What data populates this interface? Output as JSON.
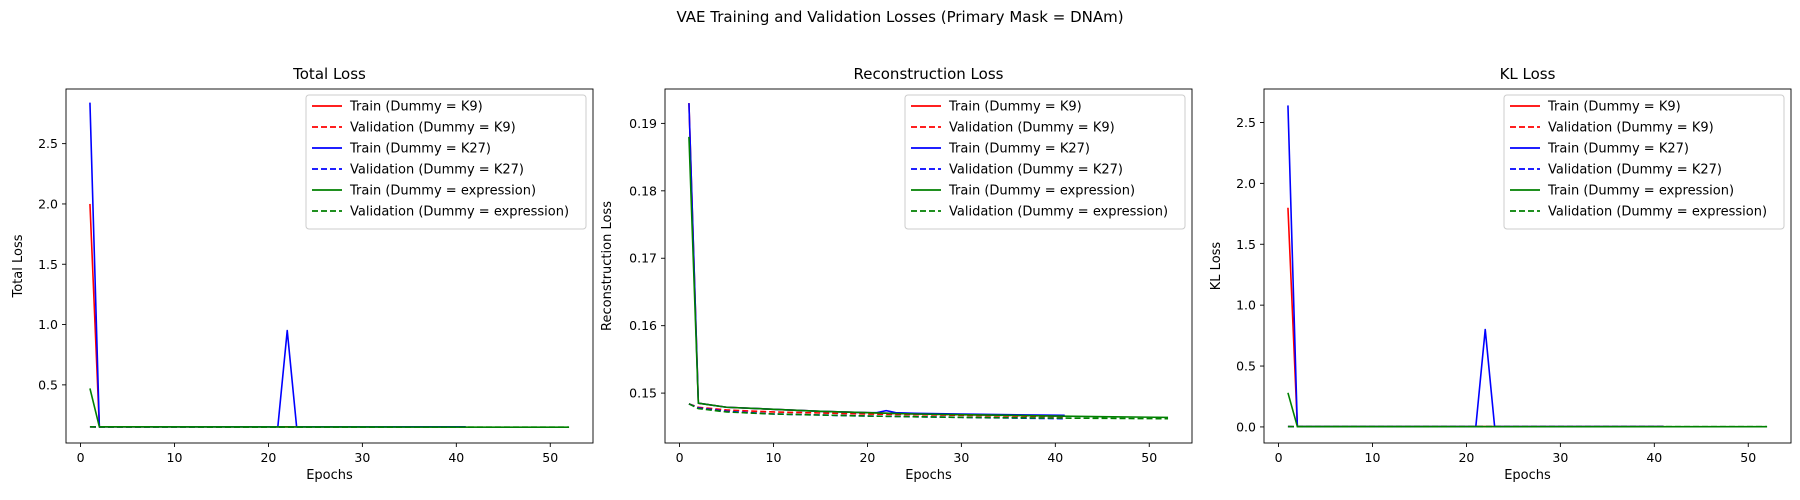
{
  "figure": {
    "suptitle": "VAE Training and Validation Losses (Primary Mask = DNAm)"
  },
  "colors": {
    "K9": "#ff0000",
    "K27": "#0000ff",
    "expression": "#008000"
  },
  "legend_placement": "upper right",
  "chart_data": [
    {
      "type": "line",
      "title": "Total Loss",
      "xlabel": "Epochs",
      "ylabel": "Total Loss",
      "xlim": [
        -1.55,
        54.55
      ],
      "ylim": [
        0.018,
        2.953
      ],
      "xticks": [
        0,
        10,
        20,
        30,
        40,
        50
      ],
      "yticks": [
        0.5,
        1.0,
        1.5,
        2.0,
        2.5
      ],
      "grid": false,
      "legend": "top-right",
      "series": [
        {
          "name": "Train (Dummy = K9)",
          "color": "#ff0000",
          "dash": "solid",
          "x": [
            1,
            2,
            41
          ],
          "y": [
            2.0,
            0.152,
            0.152
          ]
        },
        {
          "name": "Validation (Dummy = K9)",
          "color": "#ff0000",
          "dash": "dashed",
          "x": [
            1,
            2,
            41
          ],
          "y": [
            0.152,
            0.151,
            0.151
          ]
        },
        {
          "name": "Train (Dummy = K27)",
          "color": "#0000ff",
          "dash": "solid",
          "x": [
            1,
            2,
            21,
            22,
            23,
            41
          ],
          "y": [
            2.84,
            0.152,
            0.152,
            0.95,
            0.152,
            0.152
          ]
        },
        {
          "name": "Validation (Dummy = K27)",
          "color": "#0000ff",
          "dash": "dashed",
          "x": [
            1,
            2,
            41
          ],
          "y": [
            0.152,
            0.151,
            0.151
          ]
        },
        {
          "name": "Train (Dummy = expression)",
          "color": "#008000",
          "dash": "solid",
          "x": [
            1,
            2,
            52
          ],
          "y": [
            0.47,
            0.152,
            0.149
          ]
        },
        {
          "name": "Validation (Dummy = expression)",
          "color": "#008000",
          "dash": "dashed",
          "x": [
            1,
            2,
            52
          ],
          "y": [
            0.152,
            0.151,
            0.149
          ]
        }
      ]
    },
    {
      "type": "line",
      "title": "Reconstruction Loss",
      "xlabel": "Epochs",
      "ylabel": "Reconstruction Loss",
      "xlim": [
        -1.55,
        54.55
      ],
      "ylim": [
        0.1426,
        0.1951
      ],
      "xticks": [
        0,
        10,
        20,
        30,
        40,
        50
      ],
      "yticks": [
        0.15,
        0.16,
        0.17,
        0.18,
        0.19
      ],
      "grid": false,
      "legend": "top-right",
      "series": [
        {
          "name": "Train (Dummy = K9)",
          "color": "#ff0000",
          "dash": "solid",
          "x": [
            1,
            2,
            5,
            10,
            15,
            20,
            25,
            30,
            35,
            41
          ],
          "y": [
            0.193,
            0.1485,
            0.1479,
            0.1476,
            0.1473,
            0.1471,
            0.1469,
            0.1468,
            0.1467,
            0.1466
          ]
        },
        {
          "name": "Validation (Dummy = K9)",
          "color": "#ff0000",
          "dash": "dashed",
          "x": [
            1,
            2,
            5,
            10,
            20,
            30,
            41
          ],
          "y": [
            0.1484,
            0.1479,
            0.1475,
            0.1472,
            0.1469,
            0.1467,
            0.1465
          ]
        },
        {
          "name": "Train (Dummy = K27)",
          "color": "#0000ff",
          "dash": "solid",
          "x": [
            1,
            2,
            5,
            10,
            15,
            20,
            21,
            22,
            23,
            25,
            30,
            35,
            41
          ],
          "y": [
            0.193,
            0.1485,
            0.1479,
            0.1476,
            0.1473,
            0.1471,
            0.1471,
            0.1474,
            0.1471,
            0.147,
            0.1469,
            0.1468,
            0.1467
          ]
        },
        {
          "name": "Validation (Dummy = K27)",
          "color": "#0000ff",
          "dash": "dashed",
          "x": [
            1,
            2,
            5,
            10,
            20,
            30,
            41
          ],
          "y": [
            0.1484,
            0.1478,
            0.1473,
            0.1469,
            0.1466,
            0.1464,
            0.1462
          ]
        },
        {
          "name": "Train (Dummy = expression)",
          "color": "#008000",
          "dash": "solid",
          "x": [
            1,
            2,
            5,
            10,
            15,
            20,
            25,
            30,
            35,
            40,
            45,
            52
          ],
          "y": [
            0.188,
            0.1485,
            0.1479,
            0.1476,
            0.1473,
            0.1471,
            0.1469,
            0.1468,
            0.1467,
            0.1466,
            0.1465,
            0.1464
          ]
        },
        {
          "name": "Validation (Dummy = expression)",
          "color": "#008000",
          "dash": "dashed",
          "x": [
            1,
            2,
            5,
            10,
            20,
            30,
            40,
            52
          ],
          "y": [
            0.1484,
            0.1477,
            0.1472,
            0.1469,
            0.1466,
            0.1464,
            0.1463,
            0.1462
          ]
        }
      ]
    },
    {
      "type": "line",
      "title": "KL Loss",
      "xlabel": "Epochs",
      "ylabel": "KL Loss",
      "xlim": [
        -1.55,
        54.55
      ],
      "ylim": [
        -0.132,
        2.775
      ],
      "xticks": [
        0,
        10,
        20,
        30,
        40,
        50
      ],
      "yticks": [
        0.0,
        0.5,
        1.0,
        1.5,
        2.0,
        2.5
      ],
      "grid": false,
      "legend": "top-right",
      "series": [
        {
          "name": "Train (Dummy = K9)",
          "color": "#ff0000",
          "dash": "solid",
          "x": [
            1,
            2,
            41
          ],
          "y": [
            1.8,
            0.003,
            0.003
          ]
        },
        {
          "name": "Validation (Dummy = K9)",
          "color": "#ff0000",
          "dash": "dashed",
          "x": [
            1,
            2,
            41
          ],
          "y": [
            0.003,
            0.002,
            0.002
          ]
        },
        {
          "name": "Train (Dummy = K27)",
          "color": "#0000ff",
          "dash": "solid",
          "x": [
            1,
            2,
            21,
            22,
            23,
            41
          ],
          "y": [
            2.64,
            0.003,
            0.003,
            0.8,
            0.003,
            0.003
          ]
        },
        {
          "name": "Validation (Dummy = K27)",
          "color": "#0000ff",
          "dash": "dashed",
          "x": [
            1,
            2,
            41
          ],
          "y": [
            0.003,
            0.002,
            0.002
          ]
        },
        {
          "name": "Train (Dummy = expression)",
          "color": "#008000",
          "dash": "solid",
          "x": [
            1,
            2,
            52
          ],
          "y": [
            0.28,
            0.003,
            0.002
          ]
        },
        {
          "name": "Validation (Dummy = expression)",
          "color": "#008000",
          "dash": "dashed",
          "x": [
            1,
            2,
            52
          ],
          "y": [
            0.003,
            0.002,
            0.002
          ]
        }
      ]
    }
  ]
}
